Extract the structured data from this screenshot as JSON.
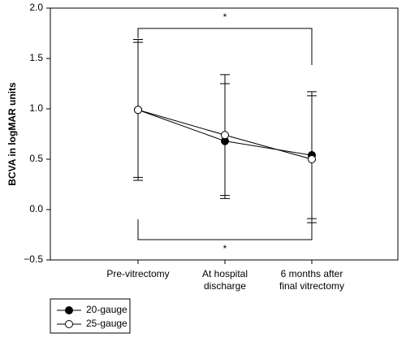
{
  "chart_data": {
    "type": "line",
    "y_label": "BCVA in logMAR units",
    "categories": [
      "Pre-vitrectomy",
      "At hospital\ndischarge",
      "6 months after\nfinal vitrectomy"
    ],
    "series": [
      {
        "name": "20-gauge",
        "color": "#000000",
        "marker_fill": "#000000",
        "values": [
          0.99,
          0.68,
          0.54
        ],
        "errors": [
          0.7,
          0.57,
          0.63
        ]
      },
      {
        "name": "25-gauge",
        "color": "#000000",
        "marker_fill": "#ffffff",
        "values": [
          0.99,
          0.74,
          0.5
        ],
        "errors": [
          0.67,
          0.6,
          0.63
        ]
      }
    ],
    "ylim": [
      -0.5,
      2.0
    ],
    "yticks": [
      {
        "value": -0.5,
        "label": "−0.5"
      },
      {
        "value": 0,
        "label": "0.0"
      },
      0.5,
      {
        "value": 1,
        "label": "1.0"
      },
      1.5,
      {
        "value": 2,
        "label": "2.0"
      }
    ],
    "annotations": [
      "*",
      "*"
    ],
    "legend": "bottom-left"
  }
}
